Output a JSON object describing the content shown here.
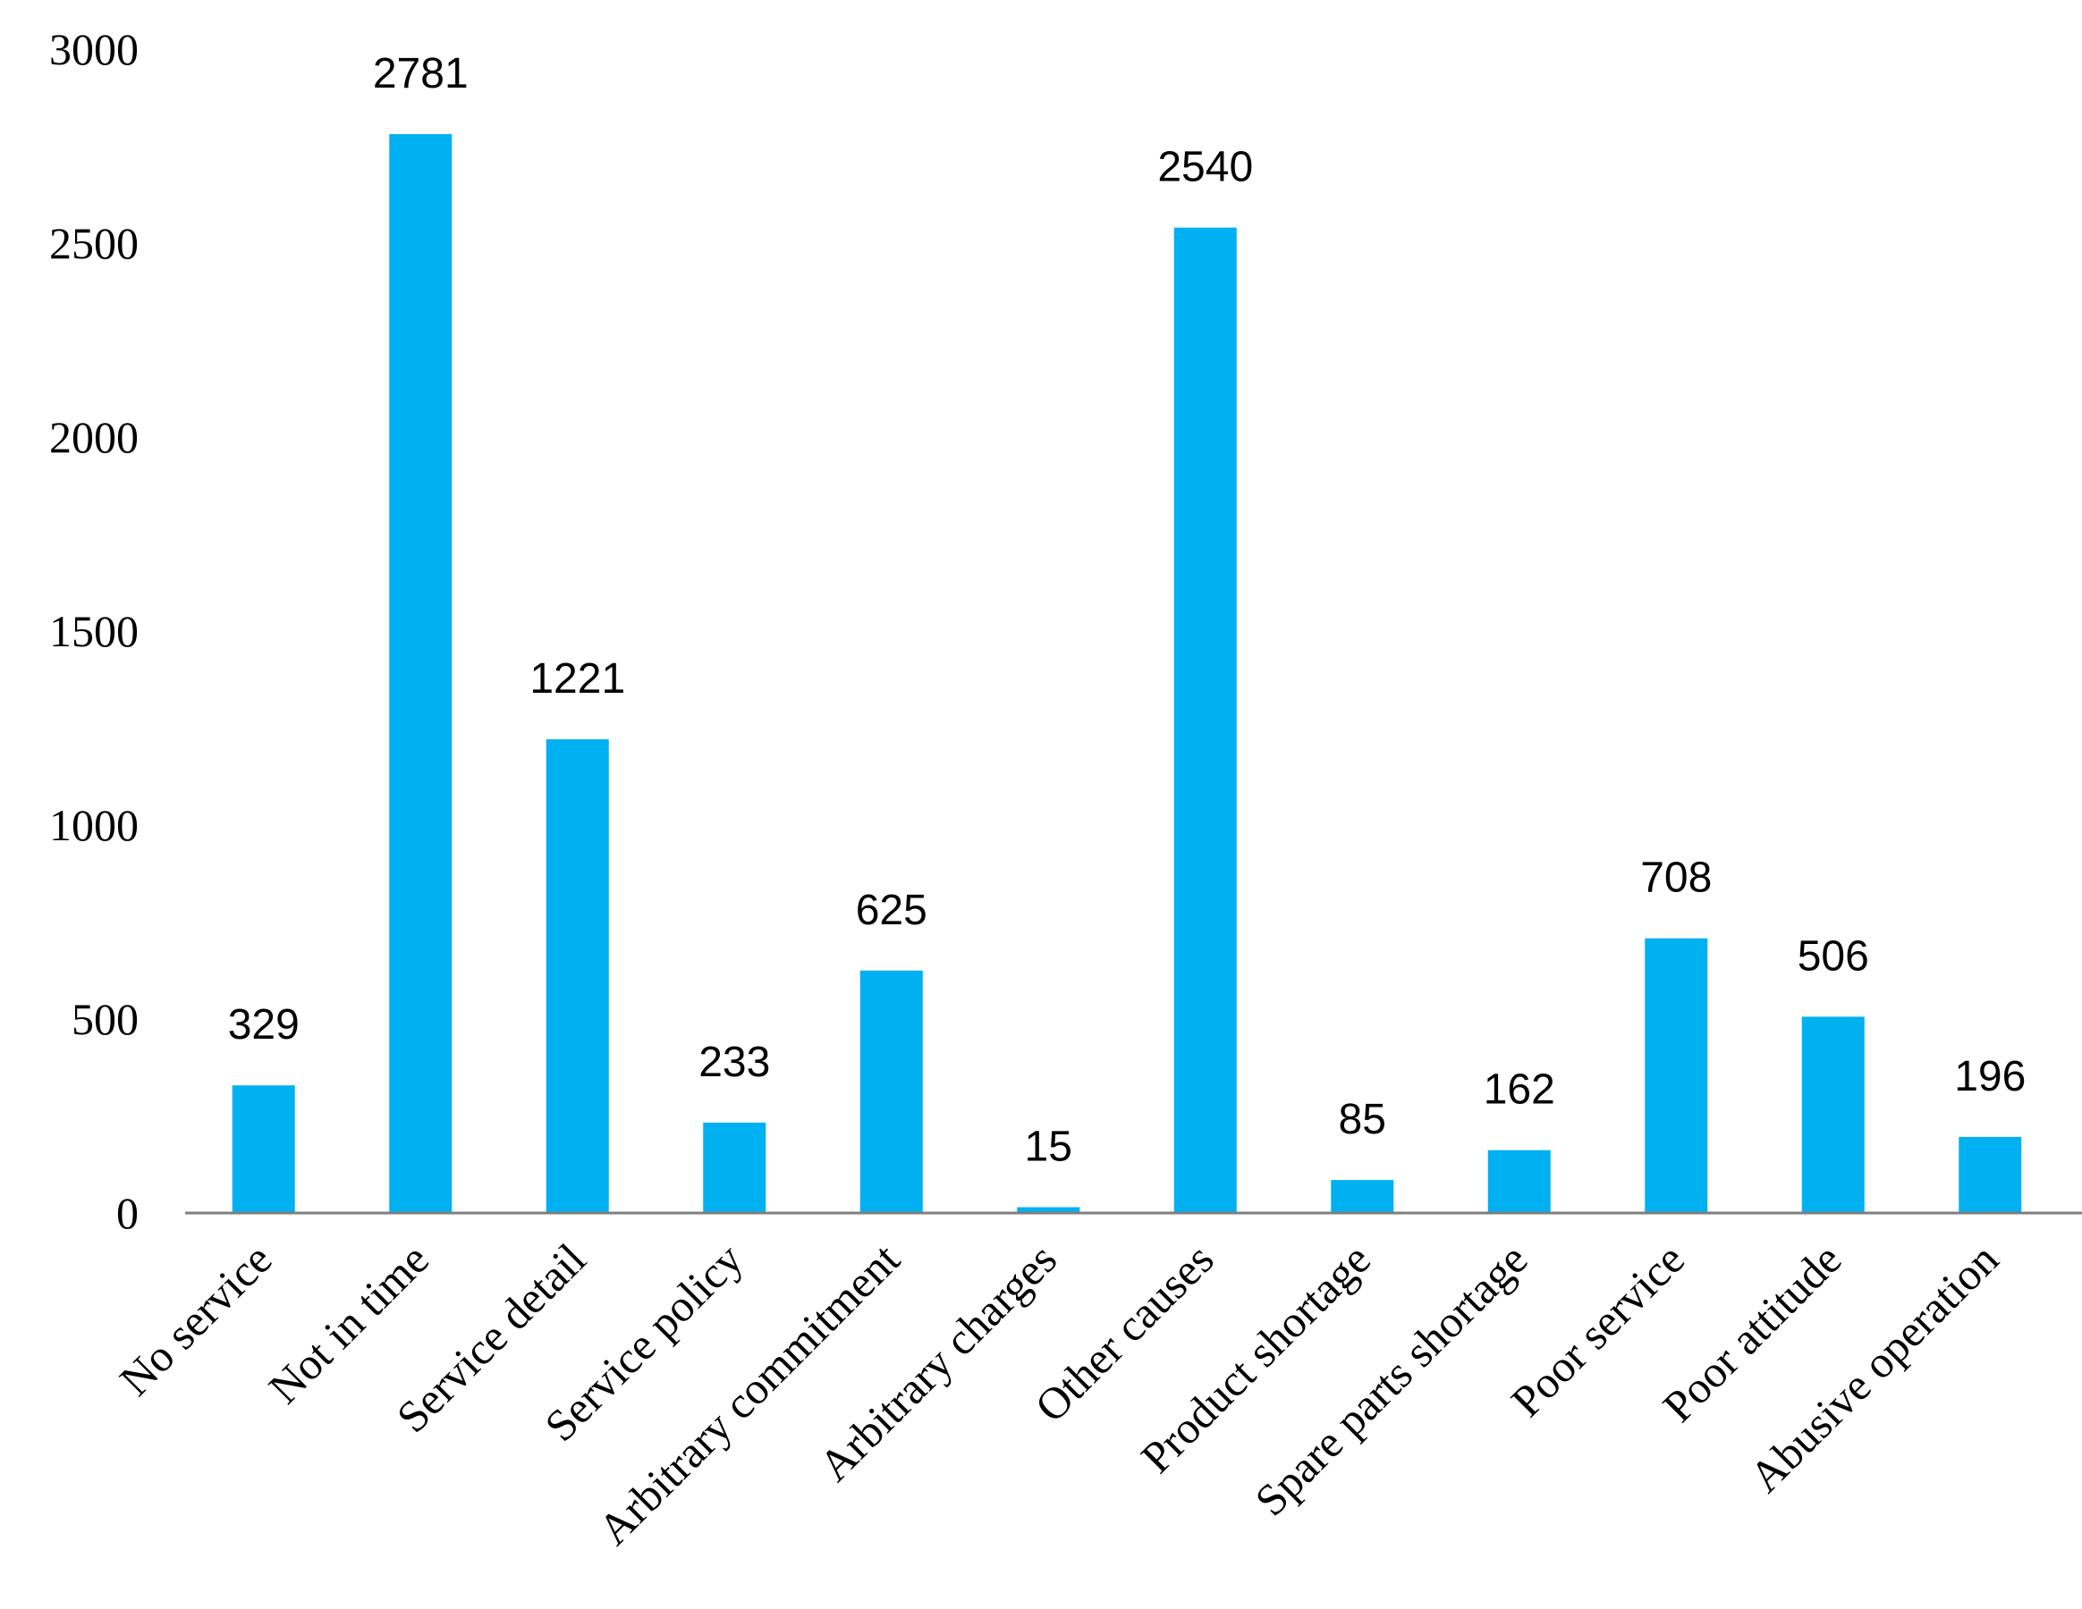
{
  "chart_data": {
    "type": "bar",
    "title": "",
    "xlabel": "",
    "ylabel": "",
    "categories": [
      "No service",
      "Not in time",
      "Service detail",
      "Service policy",
      "Arbitrary commitment",
      "Arbitrary charges",
      "Other causes",
      "Product shortage",
      "Spare parts shortage",
      "Poor service",
      "Poor attitude",
      "Abusive operation"
    ],
    "values": [
      329,
      2781,
      1221,
      233,
      625,
      15,
      2540,
      85,
      162,
      708,
      506,
      196
    ],
    "value_labels": [
      "329",
      "2781",
      "1221",
      "233",
      "625",
      "15",
      "2540",
      "85",
      "162",
      "708",
      "506",
      "196"
    ],
    "ylim": [
      0,
      3000
    ],
    "yticks": [
      0,
      500,
      1000,
      1500,
      2000,
      2500,
      3000
    ],
    "ytick_labels": [
      "0",
      "500",
      "1000",
      "1500",
      "2000",
      "2500",
      "3000"
    ],
    "grid": false,
    "legend": "none",
    "bar_color": "#00b0f0",
    "axis_color": "#7f7f7f"
  }
}
